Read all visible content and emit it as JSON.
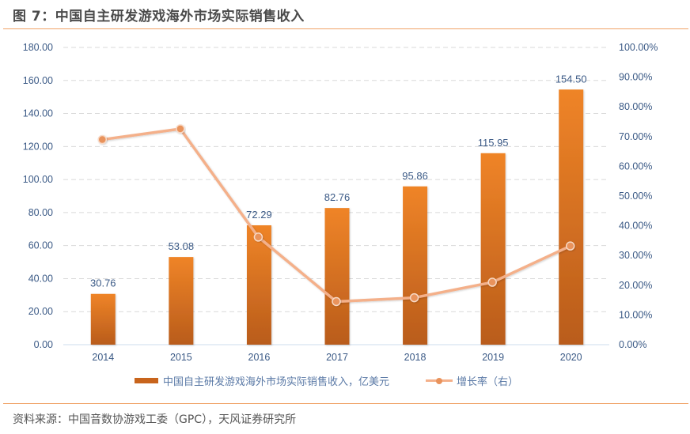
{
  "title": "图 7：中国自主研发游戏海外市场实际销售收入",
  "source": "资料来源：中国音数协游戏工委（GPC），天风证券研究所",
  "colors": {
    "bar_top": "#ef8427",
    "bar_bottom": "#b95c1c",
    "line": "#f4b08a",
    "marker": "#e9935c",
    "axis_text": "#3b5a86",
    "rule": "#f0a266"
  },
  "chart_data": {
    "type": "bar",
    "title": "中国自主研发游戏海外市场实际销售收入",
    "categories": [
      "2014",
      "2015",
      "2016",
      "2017",
      "2018",
      "2019",
      "2020"
    ],
    "series": [
      {
        "name": "中国自主研发游戏海外市场实际销售收入，亿美元",
        "type": "bar",
        "axis": "left",
        "values": [
          30.76,
          53.08,
          72.29,
          82.76,
          95.86,
          115.95,
          154.5
        ],
        "labels": [
          "30.76",
          "53.08",
          "72.29",
          "82.76",
          "95.86",
          "115.95",
          "154.50"
        ]
      },
      {
        "name": "增长率（右）",
        "type": "line",
        "axis": "right",
        "values": [
          0.69,
          0.726,
          0.362,
          0.145,
          0.158,
          0.21,
          0.332
        ]
      }
    ],
    "y_left": {
      "min": 0,
      "max": 180,
      "ticks": [
        "0.00",
        "20.00",
        "40.00",
        "60.00",
        "80.00",
        "100.00",
        "120.00",
        "140.00",
        "160.00",
        "180.00"
      ]
    },
    "y_right": {
      "min": 0,
      "max": 1,
      "ticks": [
        "0.00%",
        "10.00%",
        "20.00%",
        "30.00%",
        "40.00%",
        "50.00%",
        "60.00%",
        "70.00%",
        "80.00%",
        "90.00%",
        "100.00%"
      ]
    },
    "grid": true,
    "legend_position": "bottom"
  },
  "legend": {
    "bar_label": "中国自主研发游戏海外市场实际销售收入，亿美元",
    "line_label": "增长率（右）"
  }
}
